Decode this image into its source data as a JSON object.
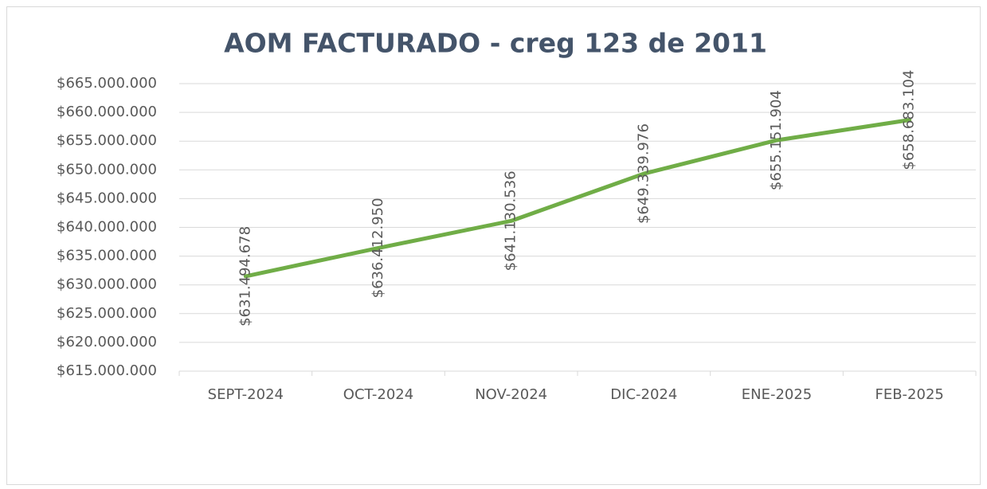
{
  "chart_data": {
    "type": "line",
    "title": "AOM  FACTURADO - creg 123 de 2011",
    "categories": [
      "SEPT-2024",
      "OCT-2024",
      "NOV-2024",
      "DIC-2024",
      "ENE-2025",
      "FEB-2025"
    ],
    "values": [
      631494678,
      636412950,
      641130536,
      649339976,
      655151904,
      658683104
    ],
    "value_labels": [
      "$631.494.678",
      "$636.412.950",
      "$641.130.536",
      "$649.339.976",
      "$655.151.904",
      "$658.683.104"
    ],
    "color": "#70ad47",
    "ylim": [
      615000000,
      665000000
    ],
    "yticks": [
      {
        "value": 615000000,
        "label": "$615.000.000"
      },
      {
        "value": 620000000,
        "label": "$620.000.000"
      },
      {
        "value": 625000000,
        "label": "$625.000.000"
      },
      {
        "value": 630000000,
        "label": "$630.000.000"
      },
      {
        "value": 635000000,
        "label": "$635.000.000"
      },
      {
        "value": 640000000,
        "label": "$640.000.000"
      },
      {
        "value": 645000000,
        "label": "$645.000.000"
      },
      {
        "value": 650000000,
        "label": "$650.000.000"
      },
      {
        "value": 655000000,
        "label": "$655.000.000"
      },
      {
        "value": 660000000,
        "label": "$660.000.000"
      },
      {
        "value": 665000000,
        "label": "$665.000.000"
      }
    ],
    "grid": true
  }
}
